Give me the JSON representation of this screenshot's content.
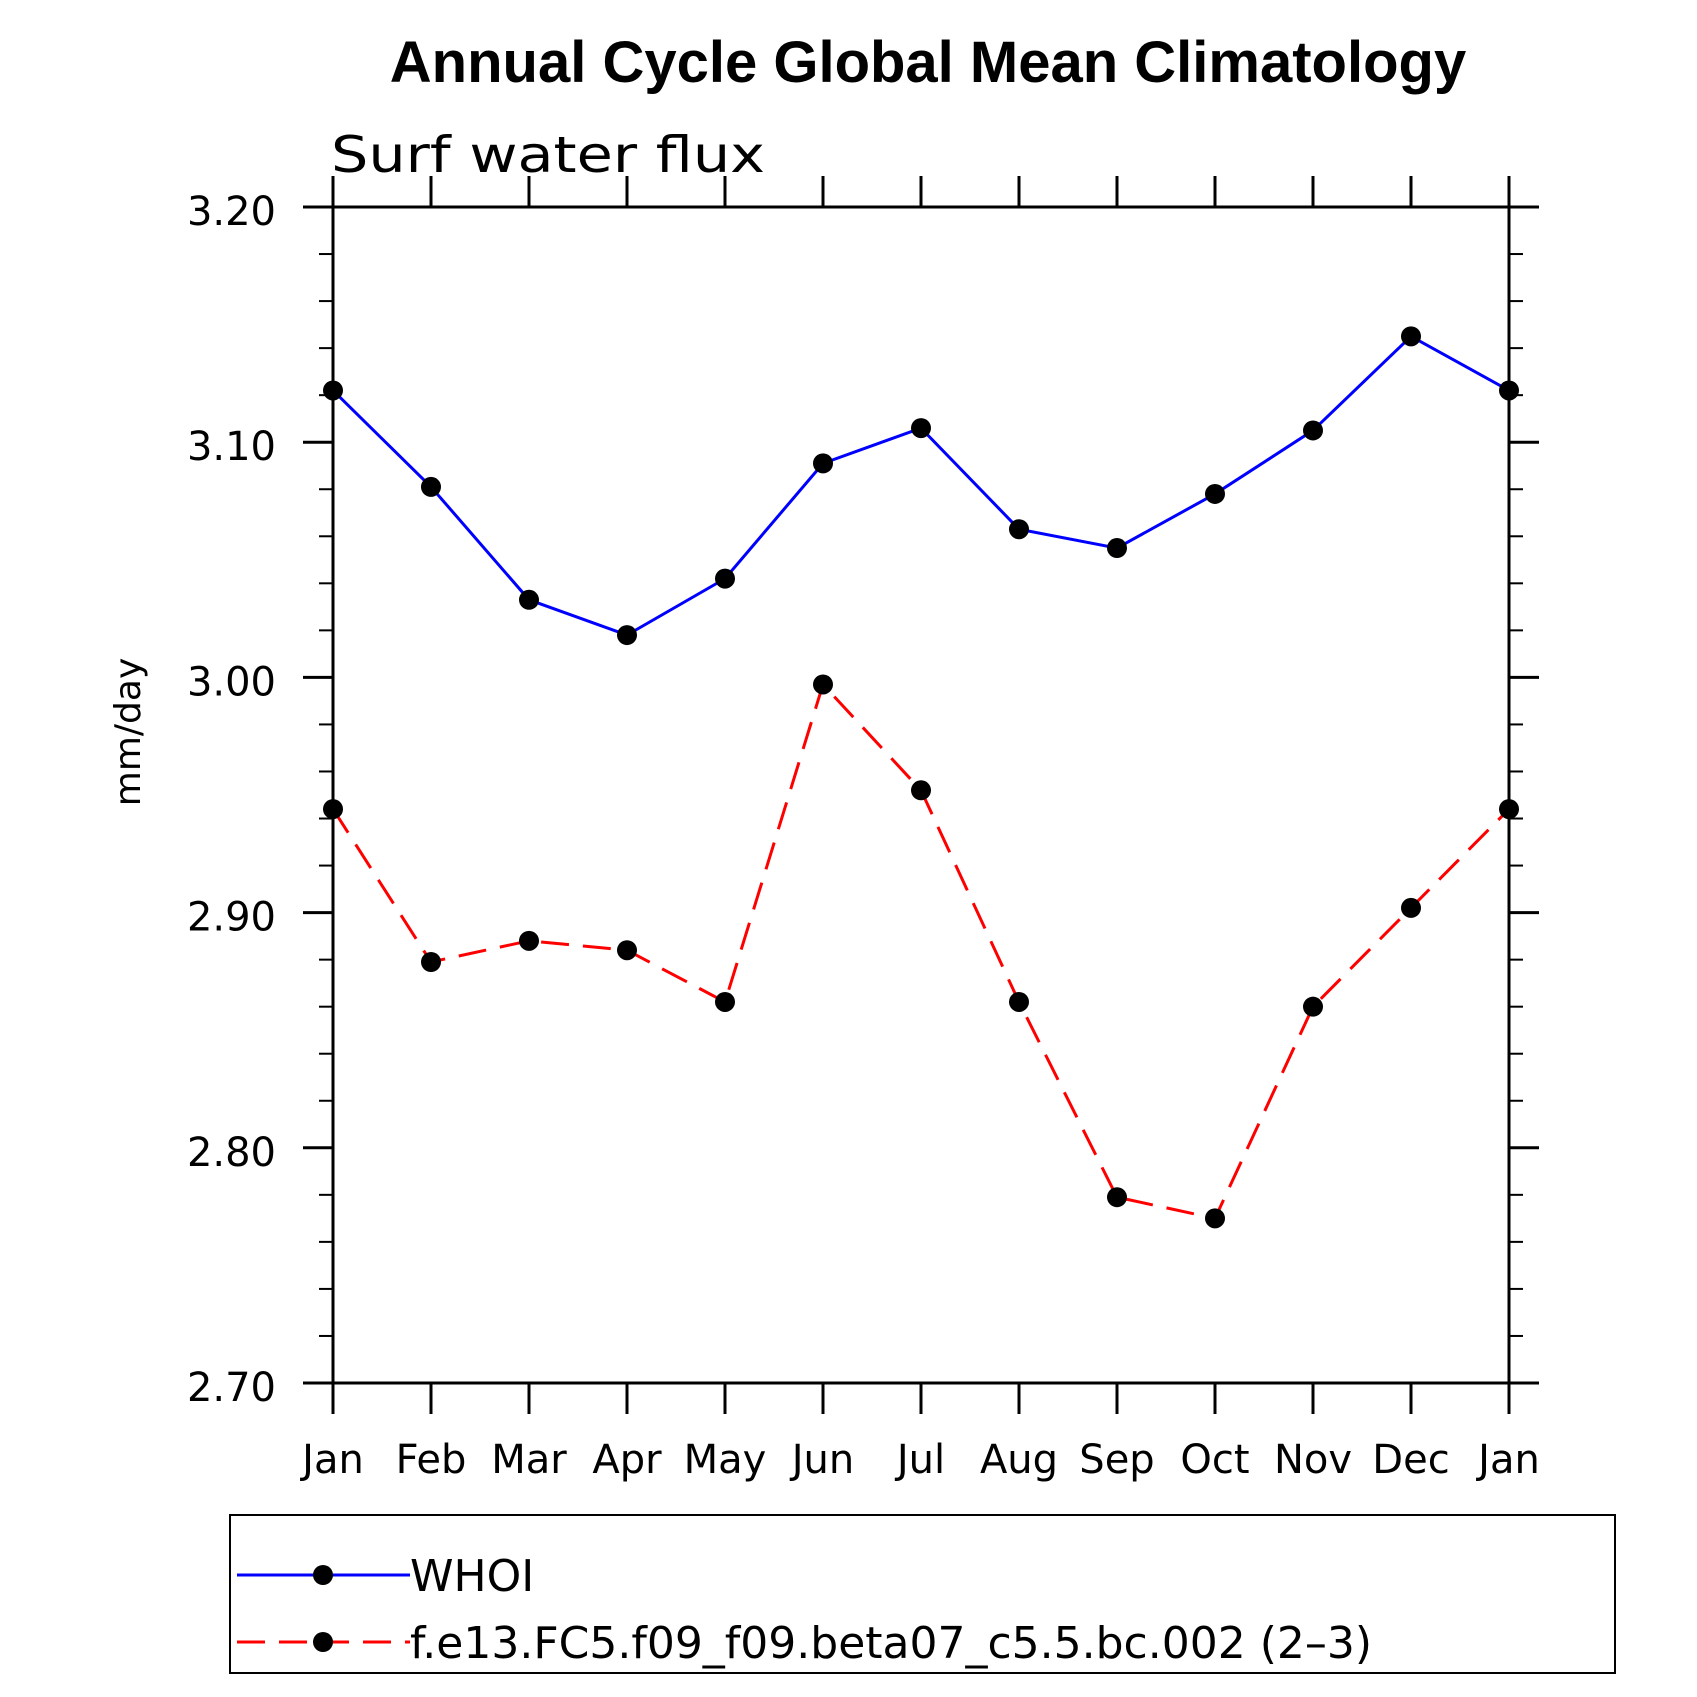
{
  "chart_data": {
    "type": "line",
    "title": "Annual Cycle Global Mean Climatology",
    "subtitle": "Surf water flux",
    "xlabel": "",
    "ylabel": "mm/day",
    "categories": [
      "Jan",
      "Feb",
      "Mar",
      "Apr",
      "May",
      "Jun",
      "Jul",
      "Aug",
      "Sep",
      "Oct",
      "Nov",
      "Dec",
      "Jan"
    ],
    "ylim": [
      2.7,
      3.2
    ],
    "yticks": [
      "2.70",
      "2.80",
      "2.90",
      "3.00",
      "3.10",
      "3.20"
    ],
    "grid": false,
    "legend_placement": "bottom",
    "series": [
      {
        "name": "WHOI",
        "color": "#0000ff",
        "line_style": "solid",
        "marker": "filled-circle",
        "values": [
          3.122,
          3.081,
          3.033,
          3.018,
          3.042,
          3.091,
          3.106,
          3.063,
          3.055,
          3.078,
          3.105,
          3.145,
          3.122
        ]
      },
      {
        "name": "f.e13.FC5.f09_f09.beta07_c5.5.bc.002 (2–3)",
        "color": "#ff0000",
        "line_style": "dashed",
        "marker": "filled-circle",
        "values": [
          2.944,
          2.879,
          2.888,
          2.884,
          2.862,
          2.997,
          2.952,
          2.862,
          2.779,
          2.77,
          2.86,
          2.902,
          2.944
        ]
      }
    ]
  }
}
